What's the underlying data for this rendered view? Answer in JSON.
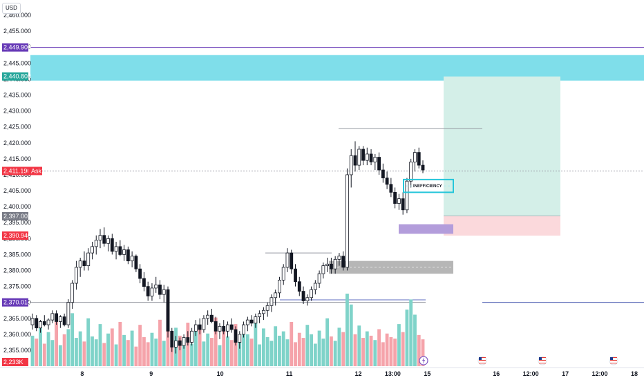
{
  "currency": "USD",
  "chart_data": {
    "type": "candlestick",
    "instrument_currency": "USD",
    "ylim": [
      2350,
      2460
    ],
    "y_ticks": [
      "2,460.000",
      "2,455.000",
      "2,450.000",
      "2,445.000",
      "2,440.000",
      "2,435.000",
      "2,430.000",
      "2,425.000",
      "2,420.000",
      "2,415.000",
      "2,410.000",
      "2,405.000",
      "2,400.000",
      "2,395.000",
      "2,390.000",
      "2,385.000",
      "2,380.000",
      "2,375.000",
      "2,370.000",
      "2,365.000",
      "2,360.000",
      "2,355.000"
    ],
    "y_tick_values": [
      2460,
      2455,
      2450,
      2445,
      2440,
      2435,
      2430,
      2425,
      2420,
      2415,
      2410,
      2405,
      2400,
      2395,
      2390,
      2385,
      2380,
      2375,
      2370,
      2365,
      2360,
      2355
    ],
    "x_ticks": [
      {
        "label": "8",
        "t": 8
      },
      {
        "label": "9",
        "t": 9
      },
      {
        "label": "10",
        "t": 10
      },
      {
        "label": "11",
        "t": 11
      },
      {
        "label": "12",
        "t": 12
      },
      {
        "label": "13:00",
        "t": 12.5
      },
      {
        "label": "15",
        "t": 13
      },
      {
        "label": "16",
        "t": 14
      },
      {
        "label": "12:00",
        "t": 14.5
      },
      {
        "label": "17",
        "t": 15
      },
      {
        "label": "12:00",
        "t": 15.5
      },
      {
        "label": "18",
        "t": 16
      }
    ],
    "price_badges": [
      {
        "label": "2,449.900",
        "value": 2449.9,
        "color": "#673ab7"
      },
      {
        "label": "2,440.803",
        "value": 2440.803,
        "color": "#26a69a"
      },
      {
        "label": "2,411.190",
        "value": 2411.19,
        "color": "#f23645",
        "tag": "Ask"
      },
      {
        "label": "2,397.002",
        "value": 2397.002,
        "color": "#787b86"
      },
      {
        "label": "2,390.940",
        "value": 2390.94,
        "color": "#f23645"
      },
      {
        "label": "2,370.014",
        "value": 2370.014,
        "color": "#673ab7"
      },
      {
        "label": "2,233K",
        "value": 2353,
        "color": "#f23645"
      }
    ],
    "horizontal_lines": [
      {
        "value": 2449.9,
        "color": "#673ab7",
        "style": "solid"
      },
      {
        "value": 2411.19,
        "color": "#9598a1",
        "style": "dotted"
      },
      {
        "value": 2370.014,
        "color": "#9598a1",
        "style": "solid"
      }
    ],
    "zones": [
      {
        "name": "supply-zone",
        "y_from": 2439.5,
        "y_to": 2447.5,
        "color": "#7fdeea"
      },
      {
        "name": "take-profit-zone",
        "y_from": 2397.002,
        "y_to": 2440.803,
        "color": "#d4efe8"
      },
      {
        "name": "stop-loss-zone",
        "y_from": 2390.94,
        "y_to": 2397.002,
        "color": "#fbd9dc"
      },
      {
        "name": "demand-zone",
        "y_from": 2379.0,
        "y_to": 2383.0,
        "color": "#9e9e9e"
      },
      {
        "name": "purple-zone",
        "y_from": 2391.5,
        "y_to": 2394.5,
        "color": "#b39ddb"
      }
    ],
    "annotation": {
      "text": "INEFFICIENCY",
      "y_from": 2404.5,
      "y_to": 2408.5,
      "color": "#26c6da"
    },
    "candles_ohlc": [
      [
        2363.0,
        2366.5,
        2361.5,
        2365.0
      ],
      [
        2365.0,
        2366.0,
        2361.0,
        2362.0
      ],
      [
        2362.0,
        2364.5,
        2360.5,
        2364.0
      ],
      [
        2364.0,
        2366.0,
        2362.5,
        2363.0
      ],
      [
        2363.0,
        2365.0,
        2361.5,
        2364.5
      ],
      [
        2364.5,
        2367.5,
        2363.5,
        2366.5
      ],
      [
        2366.5,
        2367.5,
        2363.0,
        2364.0
      ],
      [
        2364.0,
        2366.0,
        2362.0,
        2365.5
      ],
      [
        2365.5,
        2366.5,
        2362.5,
        2363.0
      ],
      [
        2363.0,
        2371.0,
        2362.0,
        2370.0
      ],
      [
        2370.0,
        2377.0,
        2368.0,
        2376.0
      ],
      [
        2376.0,
        2383.0,
        2374.0,
        2381.0
      ],
      [
        2381.0,
        2384.0,
        2378.0,
        2383.0
      ],
      [
        2383.0,
        2386.0,
        2380.0,
        2381.5
      ],
      [
        2381.5,
        2387.0,
        2380.0,
        2385.5
      ],
      [
        2385.5,
        2389.0,
        2383.5,
        2387.5
      ],
      [
        2387.5,
        2391.0,
        2385.0,
        2389.5
      ],
      [
        2389.5,
        2393.0,
        2387.0,
        2391.0
      ],
      [
        2391.0,
        2393.5,
        2387.5,
        2388.5
      ],
      [
        2388.5,
        2391.0,
        2386.0,
        2390.0
      ],
      [
        2390.0,
        2391.5,
        2385.0,
        2386.0
      ],
      [
        2386.0,
        2389.0,
        2383.5,
        2387.5
      ],
      [
        2387.5,
        2389.5,
        2384.5,
        2385.0
      ],
      [
        2385.0,
        2388.0,
        2383.0,
        2386.5
      ],
      [
        2386.5,
        2387.5,
        2382.0,
        2383.0
      ],
      [
        2383.0,
        2386.0,
        2381.0,
        2384.5
      ],
      [
        2384.5,
        2385.0,
        2379.5,
        2380.5
      ],
      [
        2380.5,
        2382.0,
        2376.0,
        2377.5
      ],
      [
        2377.5,
        2379.5,
        2373.5,
        2375.0
      ],
      [
        2375.0,
        2376.5,
        2370.5,
        2372.0
      ],
      [
        2372.0,
        2376.0,
        2370.5,
        2374.5
      ],
      [
        2374.5,
        2378.0,
        2373.0,
        2375.5
      ],
      [
        2375.5,
        2377.0,
        2371.0,
        2372.5
      ],
      [
        2372.5,
        2375.5,
        2370.0,
        2374.0
      ],
      [
        2374.0,
        2375.0,
        2359.0,
        2361.0
      ],
      [
        2361.0,
        2362.0,
        2354.5,
        2356.0
      ],
      [
        2356.0,
        2359.5,
        2354.0,
        2358.0
      ],
      [
        2358.0,
        2359.0,
        2355.0,
        2356.5
      ],
      [
        2356.5,
        2360.0,
        2355.5,
        2359.0
      ],
      [
        2359.0,
        2361.0,
        2356.5,
        2357.5
      ],
      [
        2357.5,
        2362.0,
        2356.5,
        2361.0
      ],
      [
        2361.0,
        2364.5,
        2359.5,
        2363.0
      ],
      [
        2363.0,
        2365.0,
        2360.0,
        2361.5
      ],
      [
        2361.5,
        2366.0,
        2360.5,
        2365.0
      ],
      [
        2365.0,
        2367.5,
        2363.0,
        2366.0
      ],
      [
        2366.0,
        2368.0,
        2363.5,
        2364.0
      ],
      [
        2364.0,
        2365.5,
        2360.0,
        2361.0
      ],
      [
        2361.0,
        2363.5,
        2358.5,
        2362.5
      ],
      [
        2362.5,
        2364.5,
        2360.0,
        2361.0
      ],
      [
        2361.0,
        2364.0,
        2359.0,
        2363.0
      ],
      [
        2363.0,
        2365.0,
        2360.5,
        2361.5
      ],
      [
        2361.5,
        2362.5,
        2356.5,
        2357.5
      ],
      [
        2357.5,
        2361.0,
        2355.5,
        2360.0
      ],
      [
        2360.0,
        2364.0,
        2359.0,
        2363.0
      ],
      [
        2363.0,
        2365.5,
        2361.0,
        2364.5
      ],
      [
        2364.5,
        2366.0,
        2362.5,
        2363.5
      ],
      [
        2363.5,
        2366.5,
        2362.0,
        2365.5
      ],
      [
        2365.5,
        2367.5,
        2363.5,
        2366.5
      ],
      [
        2366.5,
        2368.5,
        2364.5,
        2367.5
      ],
      [
        2367.5,
        2370.0,
        2365.5,
        2369.0
      ],
      [
        2369.0,
        2372.5,
        2367.0,
        2371.5
      ],
      [
        2371.5,
        2374.0,
        2369.0,
        2373.0
      ],
      [
        2373.0,
        2378.0,
        2371.5,
        2377.0
      ],
      [
        2377.0,
        2382.0,
        2375.5,
        2381.0
      ],
      [
        2381.0,
        2387.0,
        2379.5,
        2385.5
      ],
      [
        2385.5,
        2386.5,
        2379.0,
        2380.5
      ],
      [
        2380.5,
        2382.0,
        2375.0,
        2376.5
      ],
      [
        2376.5,
        2378.0,
        2372.0,
        2373.5
      ],
      [
        2373.5,
        2375.0,
        2369.5,
        2370.5
      ],
      [
        2370.5,
        2372.5,
        2369.0,
        2371.5
      ],
      [
        2371.5,
        2375.0,
        2370.5,
        2374.0
      ],
      [
        2374.0,
        2377.0,
        2372.5,
        2376.0
      ],
      [
        2376.0,
        2380.0,
        2374.5,
        2379.0
      ],
      [
        2379.0,
        2382.5,
        2377.5,
        2381.5
      ],
      [
        2381.5,
        2384.0,
        2379.5,
        2382.0
      ],
      [
        2382.0,
        2384.0,
        2379.0,
        2380.5
      ],
      [
        2380.5,
        2384.5,
        2379.0,
        2383.5
      ],
      [
        2383.5,
        2385.5,
        2381.5,
        2384.5
      ],
      [
        2384.5,
        2386.0,
        2380.0,
        2381.0
      ],
      [
        2381.0,
        2412.0,
        2380.0,
        2410.0
      ],
      [
        2410.0,
        2418.0,
        2406.0,
        2416.0
      ],
      [
        2416.0,
        2420.5,
        2411.0,
        2413.0
      ],
      [
        2413.0,
        2419.0,
        2411.5,
        2418.0
      ],
      [
        2418.0,
        2419.0,
        2413.0,
        2414.5
      ],
      [
        2414.5,
        2418.5,
        2413.0,
        2416.5
      ],
      [
        2416.5,
        2418.0,
        2413.0,
        2414.0
      ],
      [
        2414.0,
        2416.5,
        2411.5,
        2415.5
      ],
      [
        2415.5,
        2417.0,
        2410.0,
        2411.5
      ],
      [
        2411.5,
        2413.5,
        2407.5,
        2409.0
      ],
      [
        2409.0,
        2411.0,
        2405.5,
        2407.0
      ],
      [
        2407.0,
        2409.0,
        2403.0,
        2404.5
      ],
      [
        2404.5,
        2406.0,
        2399.5,
        2401.0
      ],
      [
        2401.0,
        2404.0,
        2399.0,
        2402.5
      ],
      [
        2402.5,
        2404.5,
        2397.5,
        2399.0
      ],
      [
        2399.0,
        2409.0,
        2398.0,
        2408.0
      ],
      [
        2408.0,
        2415.0,
        2406.0,
        2414.0
      ],
      [
        2414.0,
        2418.0,
        2411.0,
        2417.0
      ],
      [
        2417.0,
        2418.5,
        2412.0,
        2413.0
      ],
      [
        2413.0,
        2414.5,
        2410.5,
        2411.5
      ]
    ],
    "volumes": [
      42,
      38,
      55,
      31,
      47,
      36,
      62,
      29,
      44,
      51,
      73,
      39,
      48,
      34,
      66,
      41,
      37,
      58,
      32,
      45,
      52,
      30,
      61,
      43,
      36,
      49,
      27,
      57,
      40,
      33,
      46,
      38,
      64,
      35,
      79,
      28,
      53,
      42,
      37,
      60,
      31,
      48,
      56,
      34,
      45,
      39,
      67,
      29,
      50,
      41,
      36,
      58,
      33,
      47,
      44,
      38,
      63,
      30,
      52,
      40,
      35,
      55,
      42,
      48,
      37,
      61,
      33,
      46,
      39,
      57,
      44,
      31,
      49,
      38,
      66,
      41,
      35,
      53,
      47,
      100,
      85,
      44,
      56,
      39,
      48,
      42,
      36,
      51,
      33,
      45,
      40,
      38,
      58,
      47,
      78,
      92,
      71,
      43,
      37
    ],
    "volume_axis_label": "2,233K"
  }
}
